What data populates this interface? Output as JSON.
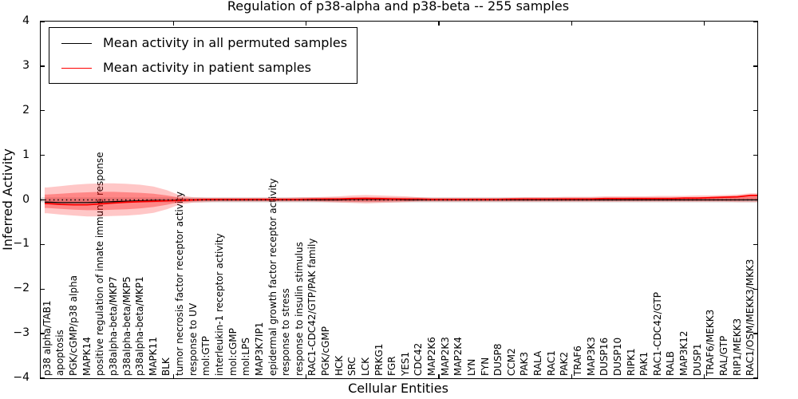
{
  "chart_data": {
    "type": "line",
    "title": "Regulation of p38-alpha and p38-beta -- 255 samples",
    "xlabel": "Cellular Entities",
    "ylabel": "Inferred Activity",
    "ylim": [
      -4,
      4
    ],
    "yticks": [
      4,
      3,
      2,
      1,
      0,
      -1,
      -2,
      -3,
      -4
    ],
    "xlim": [
      0,
      54
    ],
    "x_major_ticks": [
      10,
      20,
      30,
      40,
      50
    ],
    "grid": false,
    "legend_position": "upper left",
    "zero_line": {
      "y": 0,
      "style": "dotted",
      "color": "#000000"
    },
    "categories": [
      "p38 alpha/TAB1",
      "apoptosis",
      "PGK/cGMP/p38 alpha",
      "MAPK14",
      "positive regulation of innate immune response",
      "p38alpha-beta/MKP7",
      "p38alpha-beta/MKP5",
      "p38alpha-beta/MKP1",
      "MAPK11",
      "BLK",
      "tumor necrosis factor receptor activity",
      "response to UV",
      "mol:GTP",
      "interleukin-1 receptor activity",
      "mol:cGMP",
      "mol:LPS",
      "MAP3K7IP1",
      "epidermal growth factor receptor activity",
      "response to stress",
      "response to insulin stimulus",
      "RAC1-CDC42/GTP/PAK family",
      "PGK/cGMP",
      "HCK",
      "SRC",
      "LCK",
      "PRKG1",
      "FGR",
      "YES1",
      "CDC42",
      "MAP2K6",
      "MAP2K3",
      "MAP2K4",
      "LYN",
      "FYN",
      "DUSP8",
      "CCM2",
      "PAK3",
      "RALA",
      "RAC1",
      "PAK2",
      "TRAF6",
      "MAP3K3",
      "DUSP16",
      "DUSP10",
      "RIPK1",
      "PAK1",
      "RAC1-CDC42/GTP",
      "RALB",
      "MAP3K12",
      "DUSP1",
      "TRAF6/MEKK3",
      "RAL/GTP",
      "RIP1/MEKK3",
      "RAC1/OSM/MEKK3/MKK3"
    ],
    "series": [
      {
        "name": "Mean activity in all permuted samples",
        "color": "#000000",
        "values": [
          -0.05,
          -0.06,
          -0.06,
          -0.06,
          -0.05,
          -0.04,
          -0.03,
          -0.02,
          -0.01,
          -0.01,
          0,
          0,
          0,
          0,
          0,
          0,
          0,
          0,
          0,
          0,
          0,
          0,
          0,
          0.01,
          0.01,
          0.01,
          0.01,
          0,
          0,
          0,
          0,
          0,
          0,
          0,
          0,
          0,
          0,
          0,
          0,
          0,
          0,
          0,
          0,
          0,
          0,
          0,
          0,
          0,
          0,
          0,
          0,
          0,
          0,
          0
        ]
      },
      {
        "name": "Mean activity in patient samples",
        "color": "#ff0000",
        "values": [
          -0.08,
          -0.1,
          -0.11,
          -0.11,
          -0.09,
          -0.07,
          -0.05,
          -0.04,
          -0.03,
          -0.02,
          -0.01,
          0.0,
          0.01,
          0.01,
          0.01,
          0.01,
          0.01,
          0.01,
          0.01,
          0.01,
          0.02,
          0.02,
          0.02,
          0.03,
          0.03,
          0.03,
          0.02,
          0.02,
          0.02,
          0.01,
          0.01,
          0.01,
          0.01,
          0.01,
          0.01,
          0.02,
          0.02,
          0.02,
          0.02,
          0.02,
          0.02,
          0.02,
          0.03,
          0.03,
          0.03,
          0.03,
          0.03,
          0.03,
          0.04,
          0.04,
          0.05,
          0.06,
          0.07,
          0.1
        ]
      }
    ],
    "bands": [
      {
        "name": "permuted-samples-band",
        "color": "#888888",
        "opacity": 0.3,
        "halfwidth": 0.055
      },
      {
        "name": "patient-band-outer",
        "color": "#ff0000",
        "opacity": 0.22,
        "upper": [
          0.28,
          0.31,
          0.34,
          0.36,
          0.37,
          0.37,
          0.36,
          0.34,
          0.3,
          0.22,
          0.1,
          0.06,
          0.05,
          0.05,
          0.05,
          0.05,
          0.05,
          0.05,
          0.05,
          0.06,
          0.06,
          0.07,
          0.08,
          0.1,
          0.11,
          0.1,
          0.09,
          0.08,
          0.06,
          0.05,
          0.05,
          0.05,
          0.05,
          0.05,
          0.05,
          0.05,
          0.06,
          0.06,
          0.06,
          0.07,
          0.07,
          0.07,
          0.08,
          0.08,
          0.08,
          0.08,
          0.09,
          0.09,
          0.09,
          0.1,
          0.1,
          0.11,
          0.12,
          0.15
        ],
        "lower": [
          -0.3,
          -0.33,
          -0.35,
          -0.37,
          -0.37,
          -0.36,
          -0.35,
          -0.33,
          -0.29,
          -0.21,
          -0.1,
          -0.06,
          -0.05,
          -0.04,
          -0.04,
          -0.04,
          -0.04,
          -0.04,
          -0.04,
          -0.04,
          -0.04,
          -0.05,
          -0.06,
          -0.07,
          -0.08,
          -0.07,
          -0.06,
          -0.05,
          -0.04,
          -0.04,
          -0.04,
          -0.04,
          -0.04,
          -0.04,
          -0.04,
          -0.04,
          -0.04,
          -0.04,
          -0.04,
          -0.04,
          -0.04,
          -0.04,
          -0.04,
          -0.04,
          -0.04,
          -0.04,
          -0.04,
          -0.04,
          -0.04,
          -0.04,
          -0.04,
          -0.04,
          -0.05,
          -0.05
        ]
      },
      {
        "name": "patient-band-inner",
        "color": "#ff0000",
        "opacity": 0.32,
        "upper": [
          0.12,
          0.14,
          0.16,
          0.17,
          0.18,
          0.18,
          0.17,
          0.16,
          0.14,
          0.1,
          0.05,
          0.03,
          0.03,
          0.03,
          0.03,
          0.03,
          0.03,
          0.03,
          0.03,
          0.03,
          0.03,
          0.04,
          0.04,
          0.05,
          0.06,
          0.05,
          0.05,
          0.04,
          0.03,
          0.03,
          0.03,
          0.03,
          0.03,
          0.03,
          0.03,
          0.03,
          0.03,
          0.03,
          0.03,
          0.04,
          0.04,
          0.04,
          0.04,
          0.04,
          0.05,
          0.05,
          0.05,
          0.05,
          0.06,
          0.06,
          0.07,
          0.08,
          0.09,
          0.12
        ],
        "lower": [
          -0.18,
          -0.2,
          -0.22,
          -0.23,
          -0.23,
          -0.22,
          -0.21,
          -0.19,
          -0.16,
          -0.11,
          -0.05,
          -0.03,
          -0.02,
          -0.02,
          -0.02,
          -0.02,
          -0.02,
          -0.02,
          -0.02,
          -0.02,
          -0.02,
          -0.03,
          -0.03,
          -0.04,
          -0.04,
          -0.04,
          -0.03,
          -0.03,
          -0.02,
          -0.02,
          -0.02,
          -0.02,
          -0.02,
          -0.02,
          -0.02,
          -0.02,
          -0.02,
          -0.02,
          -0.02,
          -0.02,
          -0.02,
          -0.02,
          -0.02,
          -0.02,
          -0.02,
          -0.02,
          -0.02,
          -0.02,
          -0.02,
          -0.02,
          -0.02,
          -0.02,
          -0.02,
          -0.01
        ]
      }
    ],
    "legend": {
      "entries": [
        {
          "label": "Mean activity in all permuted samples",
          "color": "#000000"
        },
        {
          "label": "Mean activity in patient samples",
          "color": "#ff0000"
        }
      ]
    }
  }
}
